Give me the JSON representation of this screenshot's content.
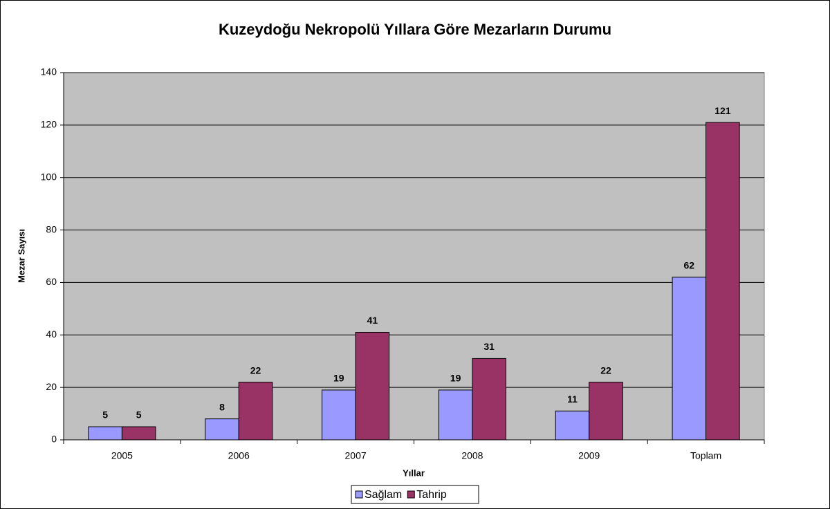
{
  "chart_data": {
    "type": "bar",
    "title": "Kuzeydoğu Nekropolü Yıllara Göre Mezarların Durumu",
    "x_label": "Yıllar",
    "y_label": "Mezar Sayısı",
    "categories": [
      "2005",
      "2006",
      "2007",
      "2008",
      "2009",
      "Toplam"
    ],
    "series": [
      {
        "name": "Sağlam",
        "color": "#9999ff",
        "values": [
          5,
          8,
          19,
          19,
          11,
          62
        ]
      },
      {
        "name": "Tahrip",
        "color": "#993366",
        "values": [
          5,
          22,
          41,
          31,
          22,
          121
        ]
      }
    ],
    "ylim": [
      0,
      140
    ],
    "yticks": [
      0,
      20,
      40,
      60,
      80,
      100,
      120,
      140
    ],
    "grid": true,
    "legend": "bottom"
  }
}
